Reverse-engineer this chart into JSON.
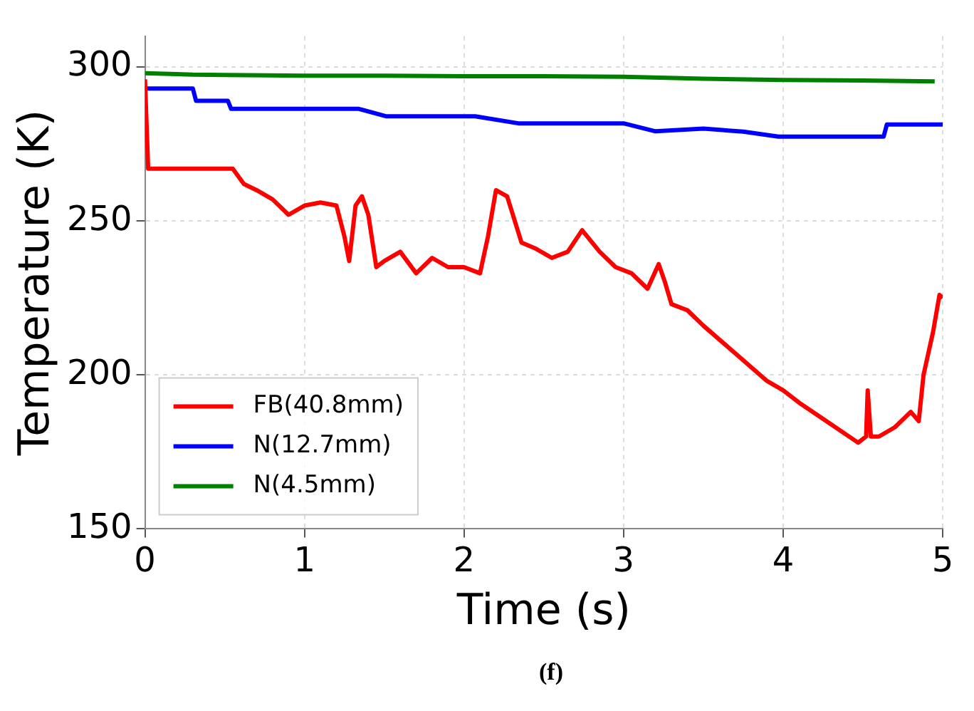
{
  "chart_data": {
    "type": "line",
    "xlabel": "Time (s)",
    "ylabel": "Temperature (K)",
    "xlim": [
      0,
      5
    ],
    "ylim": [
      150,
      310
    ],
    "xticks": [
      0,
      1,
      2,
      3,
      4,
      5
    ],
    "yticks": [
      150,
      200,
      250,
      300
    ],
    "grid": true,
    "legend": "bottom left",
    "line_style": "solid",
    "marker": "none",
    "annotations": [
      "(f)"
    ],
    "series": [
      {
        "name": "FB(40.8mm)",
        "color": "#ff0000",
        "x": [
          0,
          0.02,
          0.3,
          0.55,
          0.62,
          0.7,
          0.8,
          0.9,
          1.0,
          1.1,
          1.2,
          1.25,
          1.28,
          1.32,
          1.36,
          1.4,
          1.45,
          1.5,
          1.6,
          1.7,
          1.8,
          1.9,
          2.0,
          2.1,
          2.15,
          2.2,
          2.27,
          2.36,
          2.45,
          2.55,
          2.65,
          2.74,
          2.85,
          2.95,
          3.05,
          3.15,
          3.22,
          3.26,
          3.3,
          3.4,
          3.5,
          3.7,
          3.9,
          4.0,
          4.1,
          4.3,
          4.47,
          4.52,
          4.53,
          4.55,
          4.6,
          4.7,
          4.8,
          4.85,
          4.88,
          4.94,
          4.98,
          5.0
        ],
        "values": [
          296,
          267,
          267,
          267,
          262,
          260,
          257,
          252,
          255,
          256,
          255,
          245,
          237,
          255,
          258,
          252,
          235,
          237,
          240,
          233,
          238,
          235,
          235,
          233,
          245,
          260,
          258,
          243,
          241,
          238,
          240,
          247,
          240,
          235,
          233,
          228,
          236,
          230,
          223,
          221,
          216,
          207,
          198,
          195,
          191,
          184,
          178,
          180,
          195,
          180,
          180,
          183,
          188,
          185,
          200,
          214,
          226,
          225
        ]
      },
      {
        "name": "N(12.7mm)",
        "color": "#0000ff",
        "x": [
          0,
          0.3,
          0.32,
          0.52,
          0.54,
          1.34,
          1.51,
          2.07,
          2.34,
          3.0,
          3.2,
          3.5,
          3.75,
          3.97,
          4.63,
          4.65,
          5.0
        ],
        "values": [
          293,
          293,
          289,
          289,
          286.4,
          286.4,
          284,
          284,
          281.7,
          281.7,
          279.1,
          280,
          279,
          277.4,
          277.4,
          281.3,
          281.3
        ]
      },
      {
        "name": "N(4.5mm)",
        "color": "#008000",
        "x": [
          0,
          0.3,
          0.5,
          1.0,
          1.5,
          2.0,
          2.5,
          3.0,
          3.5,
          4.0,
          4.5,
          4.95
        ],
        "values": [
          298,
          297.5,
          297.4,
          297.2,
          297.2,
          297,
          297,
          296.8,
          296.2,
          295.8,
          295.6,
          295.3
        ]
      }
    ]
  }
}
